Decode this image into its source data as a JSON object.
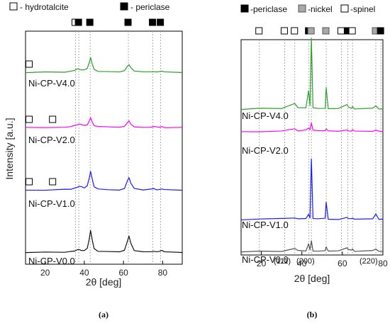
{
  "chart_data": [
    {
      "panel_label": "(a)",
      "type": "line",
      "xlabel": "2θ [deg]",
      "ylabel": "Intensity [a.u.]",
      "xlim": [
        10,
        90
      ],
      "x_ticks": [
        20,
        40,
        60,
        80
      ],
      "grid": false,
      "legend": [
        {
          "marker": "open-square",
          "label": "- hydrotalcite"
        },
        {
          "marker": "filled-square",
          "label": "- periclase"
        }
      ],
      "reference_markers": [
        {
          "x": 35.5,
          "marker": "open-square"
        },
        {
          "x": 37.2,
          "marker": "filled-square"
        },
        {
          "x": 43.0,
          "marker": "filled-square"
        },
        {
          "x": 62.5,
          "marker": "filled-square"
        },
        {
          "x": 75.0,
          "marker": "filled-square"
        },
        {
          "x": 79.0,
          "marker": "filled-square"
        }
      ],
      "ref_lines_x": [
        35.5,
        37.2,
        43.0,
        62.5,
        75.0,
        79.0
      ],
      "series": [
        {
          "name": "Ni-CP-V0.0",
          "color": "#111111",
          "x": [
            10,
            20,
            30,
            33,
            35,
            36.5,
            37.5,
            38.5,
            40,
            41.5,
            42.5,
            43.2,
            44,
            45,
            47,
            52,
            58,
            60.5,
            62,
            62.8,
            63.8,
            65.5,
            70,
            74,
            75.5,
            77,
            78.5,
            79.5,
            81,
            90
          ],
          "y": [
            0,
            0,
            0.3,
            1,
            2,
            3,
            3.5,
            2.5,
            2,
            5,
            18,
            30,
            18,
            5,
            1.5,
            0.5,
            0.3,
            2,
            15,
            23,
            12,
            2,
            0.3,
            0.3,
            1.5,
            0.5,
            1,
            2.5,
            0.5,
            0
          ]
        },
        {
          "name": "Ni-CP-V1.0",
          "color": "#1a1aff",
          "x": [
            10,
            20,
            30,
            33,
            35,
            36.5,
            37.5,
            38.5,
            40,
            41.5,
            42.5,
            43.2,
            44,
            45,
            47,
            52,
            58,
            60.5,
            62,
            62.8,
            63.8,
            65.5,
            70,
            74,
            75.5,
            77,
            78.5,
            79.5,
            81,
            90
          ],
          "y": [
            0,
            0,
            0.5,
            1.5,
            2.5,
            4,
            5,
            4,
            3,
            6,
            17,
            26,
            16,
            5,
            1.5,
            0.5,
            0.3,
            2,
            12,
            17,
            9,
            2,
            0.3,
            0.3,
            1.5,
            0.5,
            1,
            2,
            0.5,
            0
          ]
        },
        {
          "name": "Ni-CP-V2.0",
          "color": "#ff00ff",
          "x": [
            10,
            20,
            30,
            33,
            35,
            36.5,
            37.5,
            38.5,
            40,
            41.5,
            42.5,
            43.2,
            44,
            45,
            47,
            52,
            58,
            60.5,
            62,
            62.8,
            63.8,
            65.5,
            70,
            74,
            75.5,
            77,
            78.5,
            79.5,
            81,
            90
          ],
          "y": [
            0,
            0.5,
            0.5,
            1.5,
            2.5,
            3.5,
            4,
            3.5,
            2.5,
            4,
            9,
            14,
            9,
            3,
            1,
            0.5,
            0.3,
            1.5,
            7,
            10,
            5,
            1.5,
            0.3,
            0.3,
            1,
            0.5,
            0.8,
            1.5,
            0.5,
            0
          ]
        },
        {
          "name": "Ni-CP-V4.0",
          "color": "#2ca02c",
          "x": [
            10,
            20,
            30,
            33,
            35,
            36.5,
            37.5,
            38.5,
            40,
            41.5,
            42.5,
            43.2,
            44,
            45,
            47,
            52,
            58,
            60.5,
            62,
            62.8,
            63.8,
            65.5,
            70,
            74,
            75.5,
            77,
            78.5,
            79.5,
            81,
            90
          ],
          "y": [
            0,
            0.3,
            0.5,
            1.5,
            3,
            4.5,
            4,
            3.5,
            3,
            5,
            13,
            20,
            12,
            4,
            1.5,
            0.5,
            0.3,
            1.5,
            8,
            11,
            6,
            1.5,
            0.3,
            0.3,
            1,
            0.5,
            0.8,
            1.5,
            0.5,
            0
          ]
        }
      ],
      "series_markers": [
        {
          "series": "Ni-CP-V1.0",
          "markers": [
            {
              "x": 12,
              "marker": "open-square"
            },
            {
              "x": 24,
              "marker": "open-square"
            }
          ]
        },
        {
          "series": "Ni-CP-V2.0",
          "markers": [
            {
              "x": 12,
              "marker": "open-square"
            },
            {
              "x": 24,
              "marker": "open-square"
            }
          ]
        },
        {
          "series": "Ni-CP-V4.0",
          "markers": [
            {
              "x": 12,
              "marker": "open-square"
            }
          ]
        }
      ]
    },
    {
      "panel_label": "(b)",
      "type": "line",
      "xlabel": "2θ [deg]",
      "xlim": [
        10,
        80
      ],
      "x_ticks": [
        20,
        40,
        60,
        80
      ],
      "grid": false,
      "legend": [
        {
          "marker": "filled-square",
          "label": "-periclase"
        },
        {
          "marker": "gray-square",
          "label": "-nickel"
        },
        {
          "marker": "open-square",
          "label": "-spinel"
        }
      ],
      "reference_markers": [
        {
          "x": 19,
          "marker": "open-square"
        },
        {
          "x": 31.5,
          "marker": "open-square"
        },
        {
          "x": 36.5,
          "marker": "open-square"
        },
        {
          "x": 43.5,
          "marker": "filled-square"
        },
        {
          "x": 44.7,
          "marker": "gray-square"
        },
        {
          "x": 52,
          "marker": "gray-square"
        },
        {
          "x": 59.5,
          "marker": "open-square"
        },
        {
          "x": 62.7,
          "marker": "filled-square"
        },
        {
          "x": 65,
          "marker": "open-square"
        },
        {
          "x": 76.5,
          "marker": "gray-square"
        },
        {
          "x": 79,
          "marker": "filled-square"
        }
      ],
      "ref_lines_x": [
        19,
        31.5,
        36.5,
        43.5,
        44.7,
        52,
        59.5,
        62.7,
        65,
        76.5,
        79
      ],
      "annotations": [
        "(111)",
        "(200)",
        "(220)"
      ],
      "series": [
        {
          "name": "Ni-CP-V0.0",
          "color": "#555555",
          "x": [
            10,
            19,
            30,
            36.5,
            38,
            42,
            43.3,
            44,
            44.7,
            45.5,
            48,
            51.5,
            52,
            53,
            58,
            62.3,
            63,
            64.5,
            65,
            66,
            75,
            76.5,
            78,
            80
          ],
          "y": [
            0,
            0.2,
            0.2,
            1.5,
            0.3,
            0.5,
            4,
            1,
            6,
            0.5,
            0.3,
            0.5,
            2.5,
            0.3,
            0.3,
            2,
            0.8,
            0.8,
            1.5,
            0.3,
            0.3,
            1.5,
            0.3,
            0.2
          ]
        },
        {
          "name": "Ni-CP-V1.0",
          "color": "#1a1aff",
          "x": [
            10,
            19,
            30,
            36.5,
            38,
            42,
            43.3,
            44,
            44.7,
            45.5,
            48,
            51.5,
            52,
            53,
            58,
            62.3,
            63,
            64.5,
            65,
            66,
            75,
            76.5,
            78,
            80
          ],
          "y": [
            0,
            0.3,
            0.5,
            1,
            0.3,
            0.5,
            3,
            1,
            34,
            0.5,
            0.3,
            0.5,
            10,
            0.3,
            0.3,
            1.5,
            0.5,
            0.3,
            1,
            0.3,
            0.3,
            3,
            0.3,
            0.2
          ]
        },
        {
          "name": "Ni-CP-V2.0",
          "color": "#ff00ff",
          "x": [
            10,
            19,
            30,
            36.5,
            38,
            42,
            43.3,
            44,
            44.7,
            45.5,
            48,
            51.5,
            52,
            53,
            58,
            62.3,
            63,
            64.5,
            65,
            66,
            75,
            76.5,
            78,
            80
          ],
          "y": [
            0,
            0.3,
            0.5,
            1.5,
            0.5,
            1,
            2,
            1.5,
            5,
            1,
            0.5,
            0.5,
            1.5,
            0.3,
            0.3,
            1,
            0.5,
            0.5,
            1,
            0.3,
            0.3,
            1,
            0.3,
            0.2
          ]
        },
        {
          "name": "Ni-CP-V4.0",
          "color": "#2ca02c",
          "x": [
            10,
            19,
            30,
            36.5,
            38,
            42,
            43.3,
            44,
            44.7,
            45.5,
            48,
            51.5,
            52,
            53,
            58,
            62.3,
            63,
            64.5,
            65,
            66,
            75,
            76.5,
            78,
            80
          ],
          "y": [
            0,
            0.5,
            0.5,
            3,
            0.5,
            1,
            10,
            2,
            40,
            1,
            0.5,
            0.5,
            12,
            0.3,
            0.3,
            2.5,
            0.8,
            0.5,
            1.5,
            0.3,
            0.3,
            2,
            0.3,
            0.2
          ]
        }
      ]
    }
  ]
}
